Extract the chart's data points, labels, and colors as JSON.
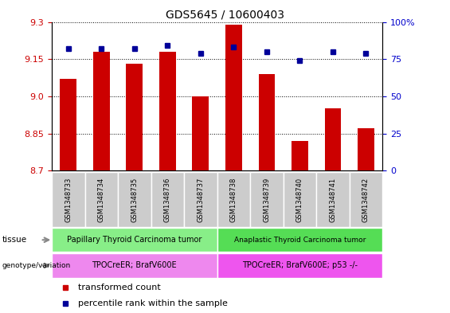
{
  "title": "GDS5645 / 10600403",
  "samples": [
    "GSM1348733",
    "GSM1348734",
    "GSM1348735",
    "GSM1348736",
    "GSM1348737",
    "GSM1348738",
    "GSM1348739",
    "GSM1348740",
    "GSM1348741",
    "GSM1348742"
  ],
  "transformed_count": [
    9.07,
    9.18,
    9.13,
    9.18,
    9.0,
    9.29,
    9.09,
    8.82,
    8.95,
    8.87
  ],
  "percentile_rank": [
    82,
    82,
    82,
    84,
    79,
    83,
    80,
    74,
    80,
    79
  ],
  "ylim_left": [
    8.7,
    9.3
  ],
  "ylim_right": [
    0,
    100
  ],
  "yticks_left": [
    8.7,
    8.85,
    9.0,
    9.15,
    9.3
  ],
  "yticks_right": [
    0,
    25,
    50,
    75,
    100
  ],
  "bar_color": "#cc0000",
  "dot_color": "#000099",
  "tissue_groups": [
    {
      "label": "Papillary Thyroid Carcinoma tumor",
      "start": 0,
      "end": 5,
      "color": "#88ee88"
    },
    {
      "label": "Anaplastic Thyroid Carcinoma tumor",
      "start": 5,
      "end": 10,
      "color": "#55dd55"
    }
  ],
  "genotype_groups": [
    {
      "label": "TPOCreER; BrafV600E",
      "start": 0,
      "end": 5,
      "color": "#ee88ee"
    },
    {
      "label": "TPOCreER; BrafV600E; p53 -/-",
      "start": 5,
      "end": 10,
      "color": "#ee55ee"
    }
  ],
  "legend_items": [
    {
      "label": "transformed count",
      "color": "#cc0000"
    },
    {
      "label": "percentile rank within the sample",
      "color": "#000099"
    }
  ],
  "axis_color_left": "#cc0000",
  "axis_color_right": "#0000cc",
  "bar_width": 0.5,
  "sample_box_color": "#cccccc",
  "title_fontsize": 10,
  "tick_fontsize": 8,
  "sample_fontsize": 6,
  "label_fontsize": 7.5,
  "group_fontsize": 7,
  "legend_fontsize": 8
}
